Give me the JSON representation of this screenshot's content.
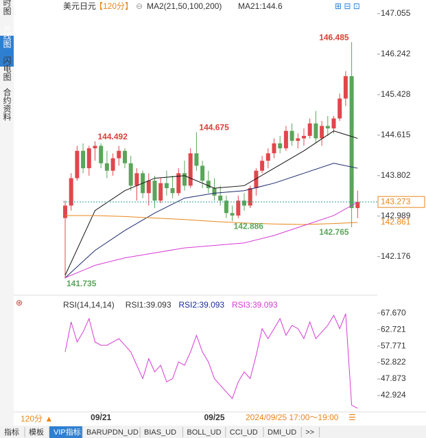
{
  "sidebar_tabs": [
    "分时图",
    "K线图",
    "闪电图",
    "合约资料"
  ],
  "header": {
    "symbol": "美元日元",
    "period": "【120分】",
    "ma_label": "MA2(21,50,100,200)",
    "ma_value": "MA21:144.6"
  },
  "chart_data": [
    {
      "type": "candlestick",
      "categories": [
        null,
        null,
        null,
        null,
        null,
        null,
        "09/21",
        null,
        null,
        null,
        null,
        null,
        null,
        null,
        null,
        null,
        null,
        null,
        null,
        null,
        null,
        null,
        null,
        null,
        null,
        "09/25",
        null,
        null,
        null,
        null,
        null,
        null,
        null,
        null,
        null,
        null,
        null,
        null,
        null,
        null,
        null,
        null,
        null,
        null,
        null,
        null,
        null,
        null,
        null,
        null
      ],
      "ohlc": [
        [
          142.95,
          143.3,
          141.735,
          143.2
        ],
        [
          143.2,
          143.85,
          143.1,
          143.75
        ],
        [
          143.75,
          144.4,
          143.7,
          144.3
        ],
        [
          144.3,
          144.45,
          143.85,
          143.95
        ],
        [
          143.95,
          144.4,
          143.8,
          144.35
        ],
        [
          144.35,
          144.492,
          144.1,
          144.4
        ],
        [
          144.4,
          144.45,
          143.95,
          144.05
        ],
        [
          144.05,
          144.3,
          143.75,
          143.9
        ],
        [
          143.9,
          144.25,
          143.8,
          144.15
        ],
        [
          144.15,
          144.4,
          144,
          144.3
        ],
        [
          144.3,
          144.35,
          143.95,
          144.05
        ],
        [
          144.05,
          144.2,
          143.5,
          143.6
        ],
        [
          143.6,
          143.95,
          143.3,
          143.85
        ],
        [
          143.85,
          143.9,
          143.35,
          143.45
        ],
        [
          143.45,
          143.85,
          143.2,
          143.7
        ],
        [
          143.7,
          143.8,
          143.15,
          143.3
        ],
        [
          143.3,
          143.75,
          143.25,
          143.65
        ],
        [
          143.65,
          143.9,
          143.4,
          143.55
        ],
        [
          143.55,
          143.8,
          143.35,
          143.45
        ],
        [
          143.45,
          143.95,
          143.4,
          143.85
        ],
        [
          143.85,
          144.1,
          143.5,
          143.6
        ],
        [
          143.6,
          144.35,
          143.55,
          144.25
        ],
        [
          144.25,
          144.675,
          143.9,
          144
        ],
        [
          144,
          144.1,
          143.55,
          143.7
        ],
        [
          143.7,
          143.9,
          143.45,
          143.55
        ],
        [
          143.55,
          143.75,
          143.3,
          143.4
        ],
        [
          143.4,
          143.6,
          143.2,
          143.3
        ],
        [
          143.3,
          143.4,
          142.95,
          143.05
        ],
        [
          143.05,
          143.2,
          142.886,
          143
        ],
        [
          143,
          143.4,
          142.95,
          143.3
        ],
        [
          143.3,
          143.45,
          143.1,
          143.2
        ],
        [
          143.2,
          143.6,
          143.15,
          143.55
        ],
        [
          143.55,
          143.95,
          143.4,
          143.9
        ],
        [
          143.9,
          144.2,
          143.85,
          144.1
        ],
        [
          144.1,
          144.35,
          143.95,
          144.25
        ],
        [
          144.25,
          144.55,
          144.15,
          144.45
        ],
        [
          144.45,
          144.6,
          144.25,
          144.35
        ],
        [
          144.35,
          144.8,
          144.3,
          144.7
        ],
        [
          144.7,
          144.85,
          144.4,
          144.5
        ],
        [
          144.5,
          144.65,
          144.35,
          144.55
        ],
        [
          144.55,
          144.75,
          144.4,
          144.6
        ],
        [
          144.6,
          144.95,
          144.55,
          144.85
        ],
        [
          144.85,
          145.1,
          144.45,
          144.55
        ],
        [
          144.55,
          144.9,
          144.4,
          144.8
        ],
        [
          144.8,
          145,
          144.6,
          144.75
        ],
        [
          144.75,
          145,
          144.65,
          144.95
        ],
        [
          144.95,
          145.45,
          144.9,
          145.35
        ],
        [
          145.35,
          145.9,
          145.2,
          145.8
        ],
        [
          145.8,
          146.485,
          142.765,
          143.15
        ],
        [
          143.15,
          143.5,
          142.95,
          143.273
        ]
      ],
      "up_color": "#e0474c",
      "down_color": "#5aa55a",
      "lines": [
        {
          "color": "#111111",
          "x": [
            0,
            5,
            10,
            15,
            20,
            25,
            30,
            35,
            40,
            45,
            49
          ],
          "values": [
            141.8,
            143.1,
            143.5,
            143.75,
            143.8,
            143.55,
            143.6,
            143.95,
            144.3,
            144.7,
            144.55
          ]
        },
        {
          "color": "#1c2a6e",
          "x": [
            0,
            5,
            10,
            15,
            20,
            25,
            30,
            35,
            40,
            45,
            49
          ],
          "values": [
            141.75,
            142.3,
            142.7,
            143.05,
            143.35,
            143.45,
            143.5,
            143.65,
            143.85,
            144.05,
            143.95
          ]
        },
        {
          "color": "#e8861a",
          "x": [
            0,
            5,
            10,
            15,
            20,
            25,
            30,
            35,
            40,
            45,
            49
          ],
          "values": [
            143,
            143,
            142.98,
            142.95,
            142.92,
            142.88,
            142.85,
            142.83,
            142.82,
            142.84,
            142.861
          ]
        },
        {
          "color": "#d63ad6",
          "x": [
            0,
            5,
            10,
            15,
            20,
            25,
            30,
            35,
            40,
            45,
            49
          ],
          "values": [
            141.75,
            142,
            142.15,
            142.25,
            142.35,
            142.4,
            142.45,
            142.6,
            142.8,
            143,
            143.27
          ]
        }
      ],
      "high_labels": [
        146.485,
        144.675,
        144.492
      ],
      "low_labels": [
        141.735,
        142.886,
        142.765
      ],
      "price_labels": [
        {
          "value": 143.273,
          "color": "#e8861a",
          "boxed": true
        },
        {
          "value": 142.861,
          "color": "#e8861a",
          "boxed": false
        }
      ],
      "ylim": [
        141.4,
        147.26
      ],
      "yticks": [
        147.055,
        146.242,
        145.428,
        144.615,
        143.802,
        142.989,
        142.176
      ]
    },
    {
      "type": "line",
      "legend": [
        {
          "text": "RSI(14,14,14)",
          "color": "#333333"
        },
        {
          "text": "RSI1:39.093",
          "color": "#333333"
        },
        {
          "text": "RSI2:39.093",
          "color": "#1c2a9e"
        },
        {
          "text": "RSI3:39.093",
          "color": "#d63ad6"
        }
      ],
      "series": [
        {
          "color": "#d63ad6",
          "values": [
            56,
            65,
            59,
            62,
            66,
            59,
            58,
            58,
            59,
            60,
            58,
            56,
            52,
            48,
            54,
            50,
            52,
            47,
            48,
            53,
            52,
            56,
            61,
            56,
            53,
            48,
            46,
            44,
            42,
            47,
            50,
            48,
            55,
            63,
            60,
            63,
            66,
            61,
            64,
            63,
            60,
            65,
            60,
            62,
            64,
            67,
            63,
            67.5,
            40,
            39.093
          ]
        }
      ],
      "ylim": [
        38.4,
        71.4
      ],
      "yticks": [
        {
          "value": 67.67,
          "label": "67.670"
        },
        62.721,
        57.771,
        52.822,
        47.873,
        42.924
      ]
    }
  ],
  "footer": {
    "period_button": "120分 ▲",
    "time_range": "2024/09/25 17:00～19:00"
  },
  "tabs": [
    "指标",
    "模板",
    "VIP指标",
    "BARUPDN_UD",
    "BIAS_UD",
    "BOLL_UD",
    "CCI_UD",
    "DMI_UD",
    ">>"
  ]
}
